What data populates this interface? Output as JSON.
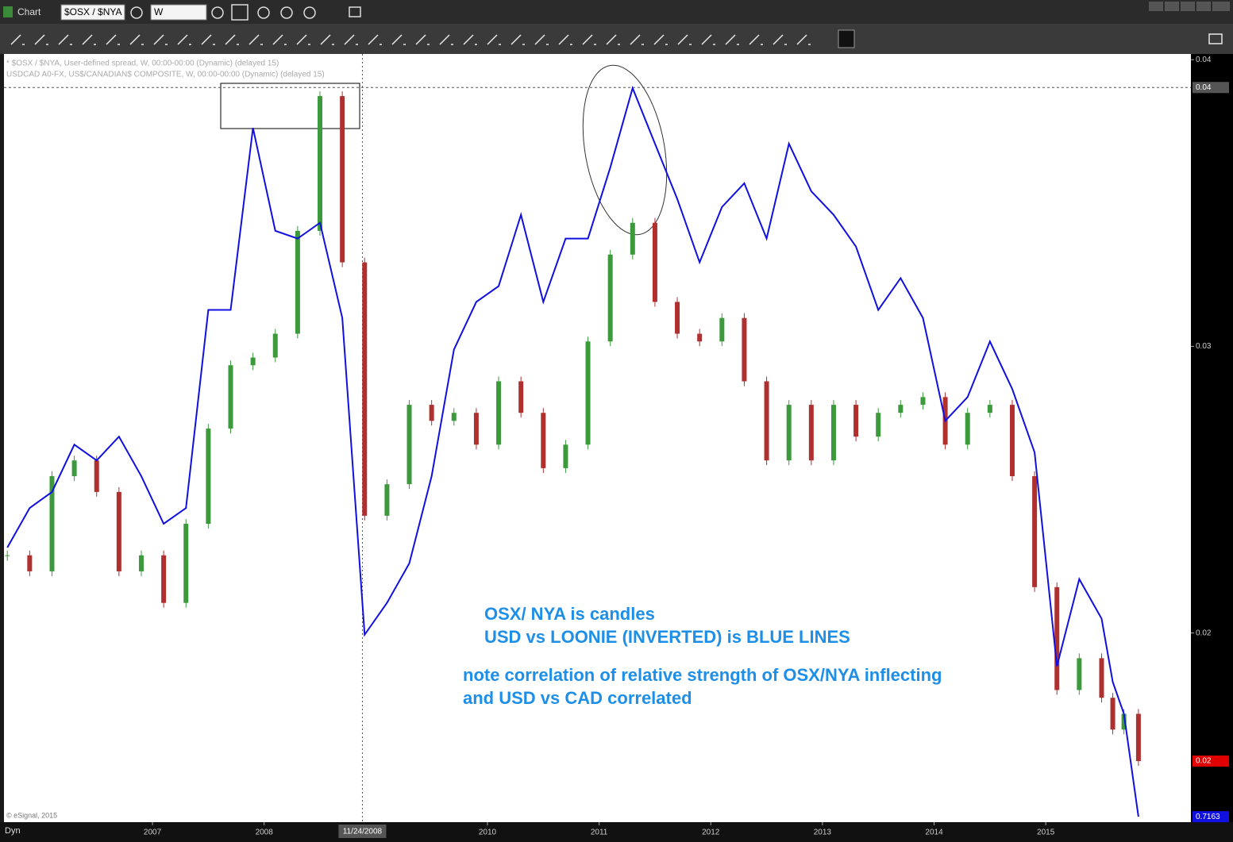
{
  "ui": {
    "window_title": "Chart",
    "symbol": "$OSX / $NYA",
    "interval": "W",
    "copyright": "© eSignal, 2015",
    "mode": "Dyn"
  },
  "chart_data": {
    "type": "candle-line",
    "x": [
      2005.7,
      2005.9,
      2006.1,
      2006.3,
      2006.5,
      2006.7,
      2006.9,
      2007.1,
      2007.3,
      2007.5,
      2007.7,
      2007.9,
      2008.1,
      2008.3,
      2008.5,
      2008.7,
      2008.9,
      2009.1,
      2009.3,
      2009.5,
      2009.7,
      2009.9,
      2010.1,
      2010.3,
      2010.5,
      2010.7,
      2010.9,
      2011.1,
      2011.3,
      2011.5,
      2011.7,
      2011.9,
      2012.1,
      2012.3,
      2012.5,
      2012.7,
      2012.9,
      2013.1,
      2013.3,
      2013.5,
      2013.7,
      2013.9,
      2014.1,
      2014.3,
      2014.5,
      2014.7,
      2014.9,
      2015.1,
      2015.3,
      2015.5,
      2015.6,
      2015.7,
      2015.83
    ],
    "series": [
      {
        "name": "* $OSX / $NYA, User-defined spread, W, 00:00-00:00 (Dynamic) (delayed 15)",
        "up_color": "#3c9a3c",
        "down_color": "#b03030",
        "values": [
          0.02271,
          0.02215,
          0.02547,
          0.02602,
          0.02492,
          0.02215,
          0.02271,
          0.02105,
          0.02381,
          0.02713,
          0.02934,
          0.02961,
          0.03044,
          0.03403,
          0.03873,
          0.03293,
          0.02409,
          0.02519,
          0.02796,
          0.0274,
          0.02768,
          0.02657,
          0.02878,
          0.02768,
          0.02575,
          0.02657,
          0.03017,
          0.0332,
          0.03431,
          0.03155,
          0.03044,
          0.03017,
          0.03099,
          0.02878,
          0.02602,
          0.02796,
          0.02602,
          0.02796,
          0.02685,
          0.02768,
          0.02796,
          0.02823,
          0.02657,
          0.02768,
          0.02796,
          0.02547,
          0.0216,
          0.01801,
          0.01912,
          0.01774,
          0.01663,
          0.01718,
          0.01553
        ]
      },
      {
        "name": "USDCAD A0-FX, US$/CANADIAN$ COMPOSITE, W, 00:00-00:00 (Dynamic) (delayed 15)",
        "color": "#1010e0",
        "last_label": "0.7163",
        "values": [
          0.02298,
          0.02436,
          0.02492,
          0.02657,
          0.02602,
          0.02685,
          0.02547,
          0.02381,
          0.02436,
          0.03127,
          0.03127,
          0.03762,
          0.03403,
          0.03376,
          0.03431,
          0.03099,
          0.01994,
          0.02105,
          0.02243,
          0.02547,
          0.02989,
          0.03155,
          0.0321,
          0.03459,
          0.03155,
          0.03376,
          0.03376,
          0.03624,
          0.03901,
          0.03707,
          0.03514,
          0.03293,
          0.03486,
          0.03569,
          0.03376,
          0.03707,
          0.03541,
          0.03459,
          0.03348,
          0.03127,
          0.03238,
          0.03099,
          0.0274,
          0.02823,
          0.03017,
          0.02851,
          0.0263,
          0.01884,
          0.02188,
          0.0205,
          0.01829,
          0.01718,
          0.01359
        ]
      }
    ],
    "xlim": [
      2005.67,
      2016.3
    ],
    "xticks": [
      2007,
      2008,
      2010,
      2011,
      2012,
      2013,
      2014,
      2015
    ],
    "ylim": [
      0.0134,
      0.0402
    ],
    "yticks": [
      0.04,
      0.03,
      0.02
    ],
    "crosshair": {
      "x": 2008.88,
      "x_label": "11/24/2008",
      "y": 0.03903,
      "y_label": "0.04"
    },
    "last_price": {
      "value": 0.01553,
      "label": "0.02"
    },
    "annotations": [
      "OSX/ NYA is candles",
      "USD vs LOONIE (INVERTED) is BLUE LINES",
      "note correlation of relative strength of OSX/NYA inflecting",
      "and USD vs CAD correlated"
    ]
  }
}
